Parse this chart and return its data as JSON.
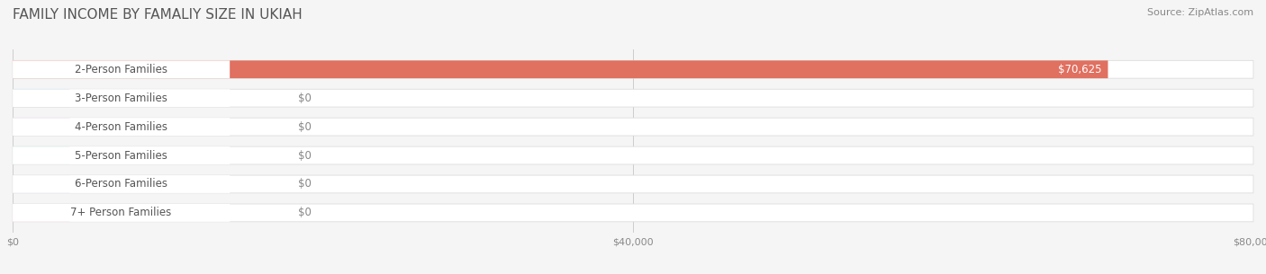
{
  "title": "FAMILY INCOME BY FAMALIY SIZE IN UKIAH",
  "source": "Source: ZipAtlas.com",
  "categories": [
    "2-Person Families",
    "3-Person Families",
    "4-Person Families",
    "5-Person Families",
    "6-Person Families",
    "7+ Person Families"
  ],
  "values": [
    70625,
    0,
    0,
    0,
    0,
    0
  ],
  "bar_colors": [
    "#e07060",
    "#9ab4d8",
    "#b899c8",
    "#72bfb8",
    "#a8aadb",
    "#f0a0b8"
  ],
  "bar_label": [
    "$70,625",
    "$0",
    "$0",
    "$0",
    "$0",
    "$0"
  ],
  "xlim": [
    0,
    80000
  ],
  "xticks": [
    0,
    40000,
    80000
  ],
  "xtick_labels": [
    "$0",
    "$40,000",
    "$80,000"
  ],
  "background_color": "#f5f5f5",
  "bar_bg_color": "#ffffff",
  "title_fontsize": 11,
  "source_fontsize": 8,
  "label_fontsize": 8.5,
  "value_fontsize": 8.5,
  "bar_height": 0.62
}
